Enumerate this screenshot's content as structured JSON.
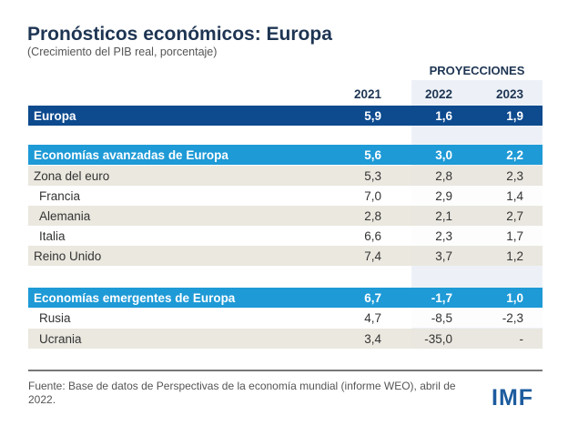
{
  "title": "Pronósticos económicos: Europa",
  "subtitle": "(Crecimiento del PIB real, porcentaje)",
  "projections_label": "PROYECCIONES",
  "years": [
    "2021",
    "2022",
    "2023"
  ],
  "rows": [
    {
      "label": "Europa",
      "values": [
        "5,9",
        "1,6",
        "1,9"
      ]
    },
    {
      "label": "Economías avanzadas de Europa",
      "values": [
        "5,6",
        "3,0",
        "2,2"
      ]
    },
    {
      "label": "Zona del euro",
      "values": [
        "5,3",
        "2,8",
        "2,3"
      ]
    },
    {
      "label": "Francia",
      "values": [
        "7,0",
        "2,9",
        "1,4"
      ]
    },
    {
      "label": "Alemania",
      "values": [
        "2,8",
        "2,1",
        "2,7"
      ]
    },
    {
      "label": "Italia",
      "values": [
        "6,6",
        "2,3",
        "1,7"
      ]
    },
    {
      "label": "Reino Unido",
      "values": [
        "7,4",
        "3,7",
        "1,2"
      ]
    },
    {
      "label": "Economías emergentes de Europa",
      "values": [
        "6,7",
        "-1,7",
        "1,0"
      ]
    },
    {
      "label": "Rusia",
      "values": [
        "4,7",
        "-8,5",
        "-2,3"
      ]
    },
    {
      "label": "Ucrania",
      "values": [
        "3,4",
        "-35,0",
        "-"
      ]
    }
  ],
  "footer": "Fuente: Base de datos de Perspectivas de la economía mundial (informe WEO), abril de 2022.",
  "logo": "IMF",
  "colors": {
    "dark_blue": "#0d4a8e",
    "light_blue": "#1e9ad6",
    "beige": "#e8e6dc"
  }
}
